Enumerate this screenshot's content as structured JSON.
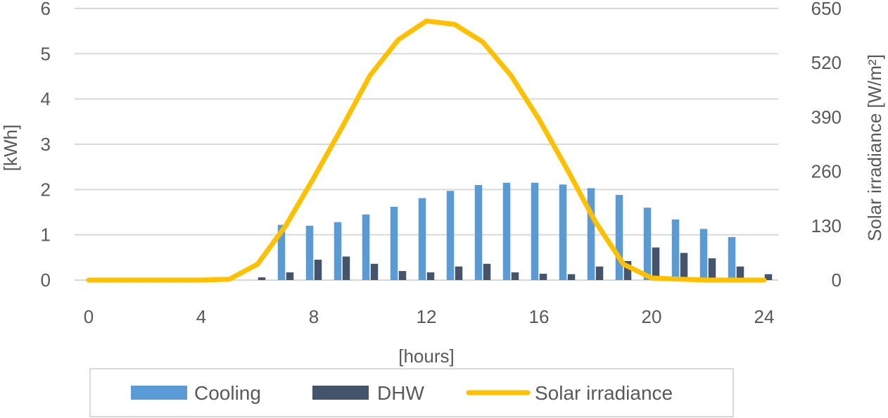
{
  "chart_data": {
    "type": "bar",
    "xlabel": "[hours]",
    "ylabel": "[kWh]",
    "y2label": "Solar irradiance [W/m²]",
    "xticks": [
      "0",
      "4",
      "8",
      "12",
      "16",
      "20",
      "24"
    ],
    "yticks": [
      "0",
      "1",
      "2",
      "3",
      "4",
      "5",
      "6"
    ],
    "y2ticks": [
      "0",
      "130",
      "260",
      "390",
      "520",
      "650"
    ],
    "xlim": [
      0,
      24
    ],
    "ylim": [
      0,
      6
    ],
    "y2lim": [
      0,
      650
    ],
    "grid": true,
    "legend_position": "bottom",
    "hours": [
      0,
      1,
      2,
      3,
      4,
      5,
      6,
      7,
      8,
      9,
      10,
      11,
      12,
      13,
      14,
      15,
      16,
      17,
      18,
      19,
      20,
      21,
      22,
      23,
      24
    ],
    "series": [
      {
        "name": "Cooling",
        "kind": "bar",
        "axis": "left",
        "color": "#5B9BD5",
        "values": [
          0,
          0,
          0,
          0,
          0,
          0,
          0,
          1.22,
          1.2,
          1.28,
          1.45,
          1.62,
          1.81,
          1.97,
          2.1,
          2.15,
          2.15,
          2.11,
          2.03,
          1.88,
          1.6,
          1.34,
          1.13,
          0.95,
          0
        ]
      },
      {
        "name": "DHW",
        "kind": "bar",
        "axis": "left",
        "color": "#44546A",
        "values": [
          0,
          0,
          0,
          0,
          0,
          0,
          0.06,
          0.17,
          0.45,
          0.52,
          0.36,
          0.2,
          0.17,
          0.3,
          0.36,
          0.17,
          0.14,
          0.13,
          0.3,
          0.42,
          0.72,
          0.6,
          0.48,
          0.3,
          0.13
        ]
      },
      {
        "name": "Solar irradiance",
        "kind": "line",
        "axis": "right",
        "color": "#FFC000",
        "values": [
          0,
          0,
          0,
          0,
          0,
          2,
          38,
          130,
          245,
          365,
          490,
          575,
          620,
          612,
          570,
          490,
          385,
          265,
          140,
          38,
          5,
          2,
          0,
          0,
          0
        ]
      }
    ]
  }
}
